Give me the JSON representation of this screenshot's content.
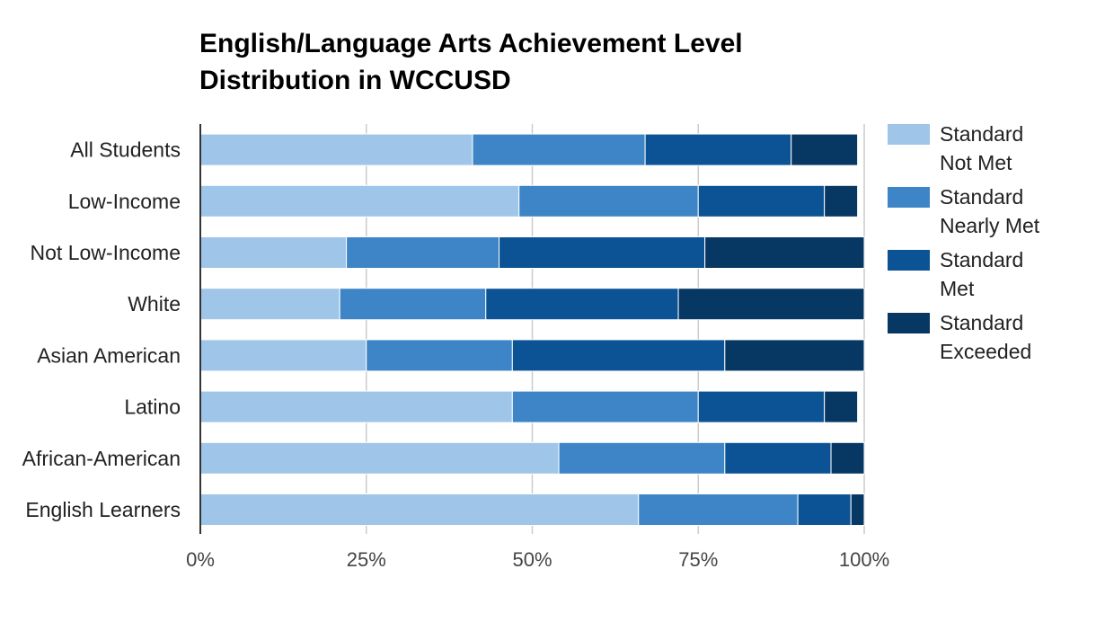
{
  "chart_data": {
    "type": "bar",
    "orientation": "horizontal",
    "stacked": "percent",
    "title": "English/Language Arts Achievement Level Distribution in WCCUSD",
    "title_lines": [
      "English/Language Arts Achievement Level",
      "Distribution in WCCUSD"
    ],
    "xlabel": "",
    "ylabel": "",
    "xlim": [
      0,
      100
    ],
    "x_ticks": [
      "0%",
      "25%",
      "50%",
      "75%",
      "100%"
    ],
    "x_tick_values": [
      0,
      25,
      50,
      75,
      100
    ],
    "grid": true,
    "legend_position": "right",
    "categories": [
      "All Students",
      "Low-Income",
      "Not Low-Income",
      "White",
      "Asian American",
      "Latino",
      "African-American",
      "English Learners"
    ],
    "series": [
      {
        "name": "Standard Not Met",
        "legend_lines": [
          "Standard",
          "Not Met"
        ],
        "color": "#9fc5e8",
        "values": [
          41,
          48,
          22,
          21,
          25,
          47,
          54,
          66
        ]
      },
      {
        "name": "Standard Nearly Met",
        "legend_lines": [
          "Standard",
          "Nearly Met"
        ],
        "color": "#3d85c6",
        "values": [
          26,
          27,
          23,
          22,
          22,
          28,
          25,
          24
        ]
      },
      {
        "name": "Standard Met",
        "legend_lines": [
          "Standard",
          "Met"
        ],
        "color": "#0b5394",
        "values": [
          22,
          19,
          31,
          29,
          32,
          19,
          16,
          8
        ]
      },
      {
        "name": "Standard Exceeded",
        "legend_lines": [
          "Standard",
          "Exceeded"
        ],
        "color": "#073763",
        "values": [
          10,
          5,
          24,
          28,
          21,
          5,
          5,
          2
        ]
      }
    ]
  }
}
